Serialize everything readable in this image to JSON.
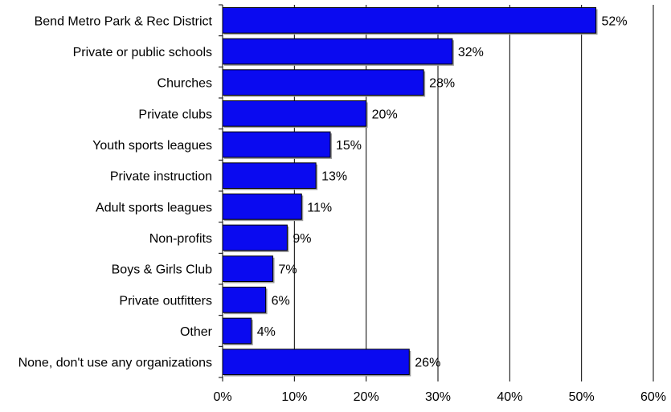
{
  "chart_data": {
    "type": "bar",
    "orientation": "horizontal",
    "categories": [
      "Bend Metro Park & Rec District",
      "Private or public schools",
      "Churches",
      "Private clubs",
      "Youth sports leagues",
      "Private instruction",
      "Adult sports leagues",
      "Non-profits",
      "Boys & Girls Club",
      "Private outfitters",
      "Other",
      "None, don't use any organizations"
    ],
    "values": [
      52,
      32,
      28,
      20,
      15,
      13,
      11,
      9,
      7,
      6,
      4,
      26
    ],
    "data_labels": [
      "52%",
      "32%",
      "28%",
      "20%",
      "15%",
      "13%",
      "11%",
      "9%",
      "7%",
      "6%",
      "4%",
      "26%"
    ],
    "xlim": [
      0,
      60
    ],
    "x_ticks": [
      0,
      10,
      20,
      30,
      40,
      50,
      60
    ],
    "x_tick_labels": [
      "0%",
      "10%",
      "20%",
      "30%",
      "40%",
      "50%",
      "60%"
    ],
    "grid": "vertical",
    "legend": "none",
    "colors": {
      "bar_fill": "#0A0AF0",
      "bar_outline": "#000000",
      "grid": "#000000",
      "axis": "#000000"
    }
  }
}
